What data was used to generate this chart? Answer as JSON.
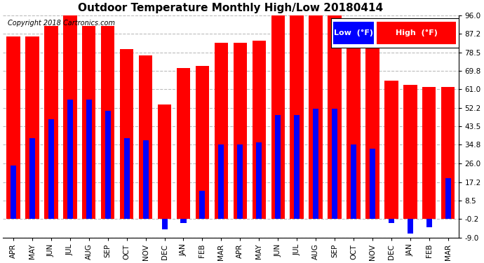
{
  "title": "Outdoor Temperature Monthly High/Low 20180414",
  "copyright": "Copyright 2018 Cartronics.com",
  "legend_low_label": "Low  (°F)",
  "legend_high_label": "High  (°F)",
  "categories": [
    "APR",
    "MAY",
    "JUN",
    "JUL",
    "AUG",
    "SEP",
    "OCT",
    "NOV",
    "DEC",
    "JAN",
    "FEB",
    "MAR",
    "APR",
    "MAY",
    "JUN",
    "JUL",
    "AUG",
    "SEP",
    "OCT",
    "NOV",
    "DEC",
    "JAN",
    "FEB",
    "MAR"
  ],
  "high": [
    86,
    86,
    91,
    97,
    91,
    91,
    80,
    77,
    54,
    71,
    72,
    83,
    83,
    84,
    96,
    96,
    96,
    96,
    82,
    82,
    65,
    63,
    62,
    62
  ],
  "low": [
    25,
    38,
    47,
    56,
    56,
    51,
    38,
    37,
    -5,
    -2,
    13,
    35,
    35,
    36,
    49,
    49,
    52,
    52,
    35,
    33,
    -2,
    -7,
    -4,
    19
  ],
  "ylim_min": -9.0,
  "ylim_max": 96.0,
  "yticks": [
    -9.0,
    -0.2,
    8.5,
    17.2,
    26.0,
    34.8,
    43.5,
    52.2,
    61.0,
    69.8,
    78.5,
    87.2,
    96.0
  ],
  "high_color": "#ff0000",
  "low_color": "#0000ff",
  "background_color": "#ffffff",
  "grid_color": "#bbbbbb",
  "title_fontsize": 11,
  "copyright_fontsize": 7,
  "tick_fontsize": 7.5,
  "legend_fontsize": 8,
  "figwidth": 6.9,
  "figheight": 3.75,
  "dpi": 100
}
